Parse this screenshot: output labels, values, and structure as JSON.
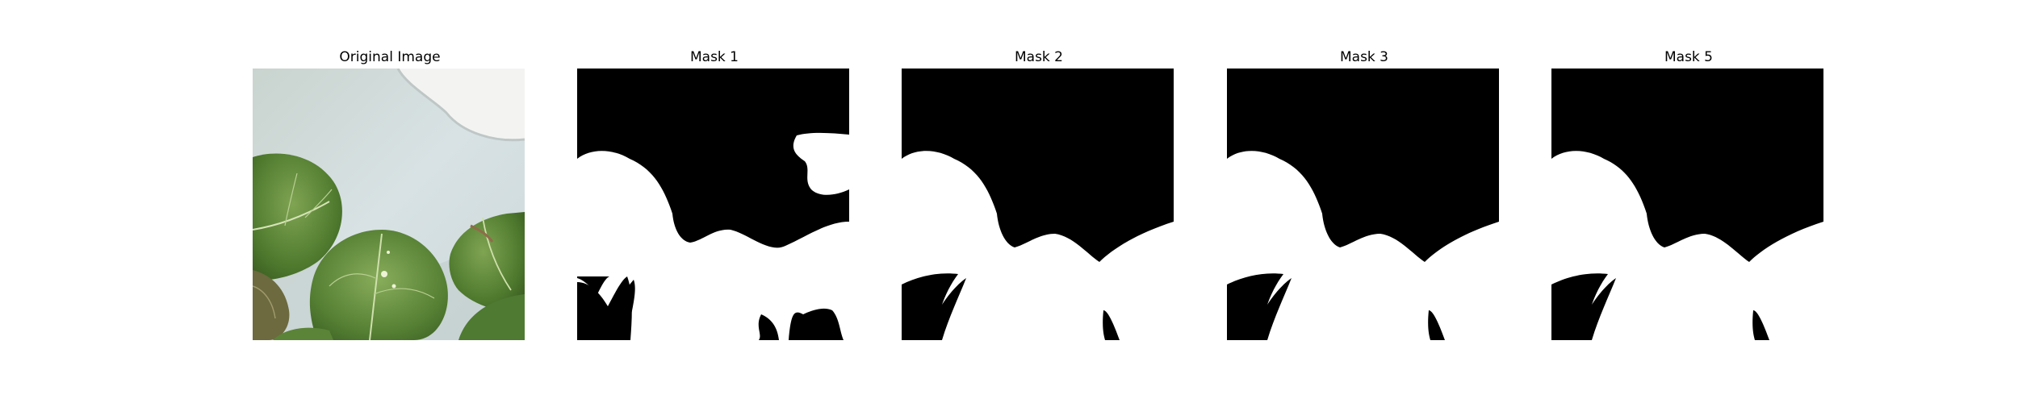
{
  "panels": [
    {
      "title": "Original Image",
      "content": "photo of green leaves against a pale grey-blue wall"
    },
    {
      "title": "Mask 1",
      "content": "binary segmentation mask"
    },
    {
      "title": "Mask 2",
      "content": "binary segmentation mask"
    },
    {
      "title": "Mask 3",
      "content": "binary segmentation mask"
    },
    {
      "title": "Mask 5",
      "content": "binary segmentation mask"
    }
  ],
  "colors": {
    "mask_background": "#000000",
    "mask_foreground": "#ffffff",
    "wall": "#d3dde0",
    "leaf": "#5f8a3c"
  }
}
